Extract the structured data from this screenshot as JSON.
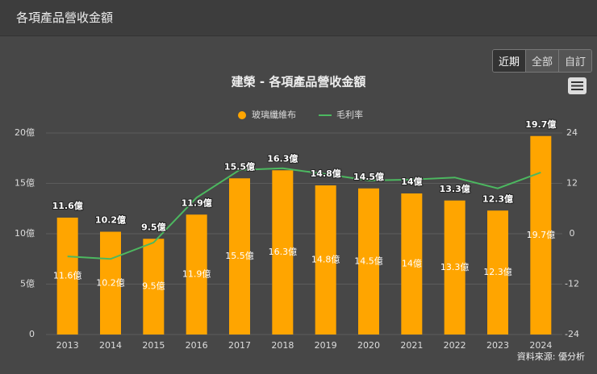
{
  "header": {
    "title": "各項產品營收金額"
  },
  "buttons": [
    "近期",
    "全部",
    "自訂"
  ],
  "chart_data": {
    "type": "bar",
    "title": "建榮 - 各項產品營收金額",
    "source": "資料來源: 優分析",
    "categories": [
      "2013",
      "2014",
      "2015",
      "2016",
      "2017",
      "2018",
      "2019",
      "2020",
      "2021",
      "2022",
      "2023",
      "2024"
    ],
    "series": [
      {
        "name": "玻璃纖維布",
        "color": "#ffa500",
        "values": [
          11.6,
          10.2,
          9.5,
          11.9,
          15.5,
          16.3,
          14.8,
          14.5,
          14,
          13.3,
          12.3,
          19.7
        ],
        "value_labels": [
          "11.6億",
          "10.2億",
          "9.5億",
          "11.9億",
          "15.5億",
          "16.3億",
          "14.8億",
          "14.5億",
          "14億",
          "13.3億",
          "12.3億",
          "19.7億"
        ]
      },
      {
        "name": "毛利率",
        "color": "#4cb860",
        "axis": "y2",
        "values": [
          -5.4,
          -6,
          -2.1,
          8.6,
          15.2,
          15.6,
          14.2,
          12.7,
          12.9,
          13.4,
          10.8,
          14.6
        ]
      }
    ],
    "ylim": [
      0,
      20
    ],
    "yticks": [
      0,
      {
        "value": 5,
        "label": "5億"
      },
      {
        "value": 10,
        "label": "10億"
      },
      {
        "value": 15,
        "label": "15億"
      },
      {
        "value": 20,
        "label": "20億"
      }
    ],
    "y2lim": [
      -24,
      24
    ],
    "y2ticks": [
      -24,
      -12,
      0,
      12,
      24
    ],
    "grid": true
  }
}
